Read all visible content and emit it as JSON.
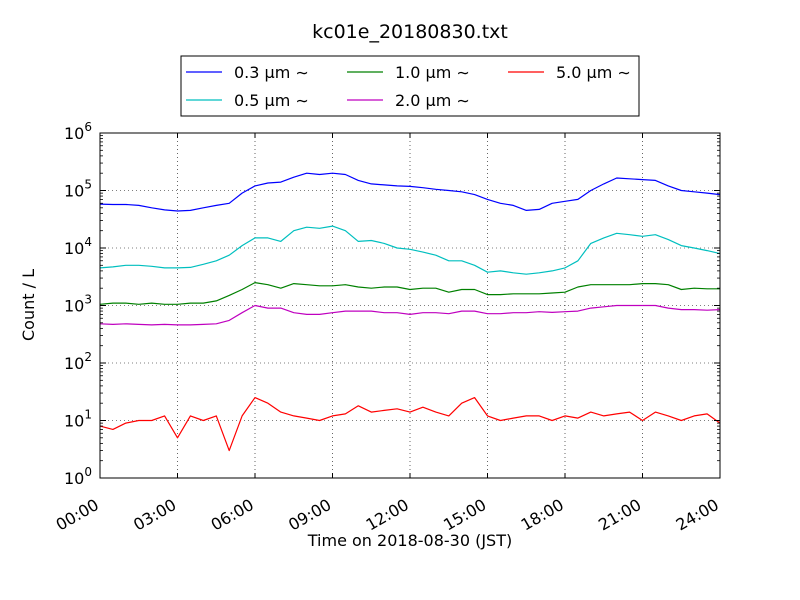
{
  "chart_data": {
    "type": "line",
    "title": "kc01e_20180830.txt",
    "xlabel": "Time on 2018-08-30 (JST)",
    "ylabel": "Count / L",
    "y_scale": "log",
    "ylim": [
      1,
      1000000
    ],
    "xlim": [
      "00:00",
      "24:00"
    ],
    "x_ticks": [
      "00:00",
      "03:00",
      "06:00",
      "09:00",
      "12:00",
      "15:00",
      "18:00",
      "21:00",
      "24:00"
    ],
    "y_ticks": [
      {
        "base": "10",
        "exp": "0"
      },
      {
        "base": "10",
        "exp": "1"
      },
      {
        "base": "10",
        "exp": "2"
      },
      {
        "base": "10",
        "exp": "3"
      },
      {
        "base": "10",
        "exp": "4"
      },
      {
        "base": "10",
        "exp": "5"
      },
      {
        "base": "10",
        "exp": "6"
      }
    ],
    "grid": true,
    "legend_position": "top-center",
    "x": [
      "00:00",
      "00:30",
      "01:00",
      "01:30",
      "02:00",
      "02:30",
      "03:00",
      "03:30",
      "04:00",
      "04:30",
      "05:00",
      "05:30",
      "06:00",
      "06:30",
      "07:00",
      "07:30",
      "08:00",
      "08:30",
      "09:00",
      "09:30",
      "10:00",
      "10:30",
      "11:00",
      "11:30",
      "12:00",
      "12:30",
      "13:00",
      "13:30",
      "14:00",
      "14:30",
      "15:00",
      "15:30",
      "16:00",
      "16:30",
      "17:00",
      "17:30",
      "18:00",
      "18:30",
      "19:00",
      "19:30",
      "20:00",
      "20:30",
      "21:00",
      "21:30",
      "22:00",
      "22:30",
      "23:00",
      "23:30",
      "24:00"
    ],
    "series": [
      {
        "name": "0.3 μm ∼",
        "color": "#0000ff",
        "values": [
          58000,
          57000,
          57000,
          55000,
          50000,
          46000,
          44000,
          45000,
          50000,
          55000,
          60000,
          90000,
          120000,
          135000,
          140000,
          170000,
          200000,
          190000,
          200000,
          190000,
          150000,
          130000,
          125000,
          120000,
          118000,
          112000,
          105000,
          100000,
          95000,
          85000,
          70000,
          60000,
          55000,
          45000,
          47000,
          60000,
          65000,
          70000,
          100000,
          130000,
          165000,
          160000,
          155000,
          150000,
          120000,
          100000,
          95000,
          90000,
          85000
        ]
      },
      {
        "name": "0.5 μm ∼",
        "color": "#00bfbf",
        "values": [
          4500,
          4700,
          5000,
          5000,
          4800,
          4500,
          4500,
          4600,
          5200,
          6000,
          7500,
          11000,
          15000,
          15000,
          13000,
          20000,
          23000,
          22000,
          24000,
          20000,
          13000,
          13500,
          12000,
          10000,
          9500,
          8500,
          7500,
          6000,
          6000,
          5000,
          3800,
          4000,
          3700,
          3500,
          3700,
          4000,
          4500,
          6000,
          12000,
          15000,
          18000,
          17000,
          16000,
          17000,
          14000,
          11000,
          10000,
          9000,
          8000
        ]
      },
      {
        "name": "1.0 μm ∼",
        "color": "#008000",
        "values": [
          1050,
          1100,
          1100,
          1050,
          1100,
          1050,
          1050,
          1100,
          1100,
          1200,
          1500,
          1900,
          2500,
          2300,
          2000,
          2400,
          2300,
          2200,
          2200,
          2300,
          2100,
          2000,
          2100,
          2100,
          1900,
          2000,
          2000,
          1700,
          1900,
          1900,
          1550,
          1550,
          1600,
          1600,
          1600,
          1650,
          1700,
          2100,
          2300,
          2300,
          2300,
          2300,
          2400,
          2400,
          2300,
          1900,
          2000,
          1950,
          1950
        ]
      },
      {
        "name": "2.0 μm ∼",
        "color": "#bf00bf",
        "values": [
          480,
          470,
          480,
          470,
          460,
          470,
          460,
          460,
          470,
          480,
          550,
          750,
          1000,
          900,
          900,
          750,
          700,
          700,
          750,
          800,
          800,
          800,
          750,
          750,
          700,
          750,
          750,
          720,
          800,
          800,
          720,
          720,
          750,
          750,
          780,
          760,
          780,
          800,
          900,
          950,
          1000,
          1000,
          1000,
          1000,
          900,
          850,
          850,
          830,
          850
        ]
      },
      {
        "name": "5.0 μm ∼",
        "color": "#ff0000",
        "values": [
          8,
          7,
          9,
          10,
          10,
          12,
          5,
          12,
          10,
          12,
          3,
          12,
          25,
          20,
          14,
          12,
          11,
          10,
          12,
          13,
          18,
          14,
          15,
          16,
          14,
          17,
          14,
          12,
          20,
          25,
          12,
          10,
          11,
          12,
          12,
          10,
          12,
          11,
          14,
          12,
          13,
          14,
          10,
          14,
          12,
          10,
          12,
          13,
          9
        ]
      }
    ]
  }
}
